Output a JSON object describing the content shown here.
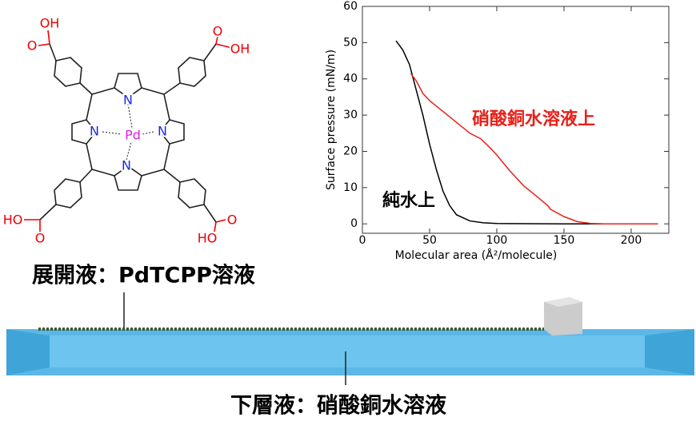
{
  "chart_data": {
    "type": "line",
    "x_label": "Molecular area (Å²/molecule)",
    "y_label": "Surface pressure (mN/m)",
    "xlim": [
      0,
      228
    ],
    "xticks": [
      0,
      50,
      100,
      150,
      200
    ],
    "ylim": [
      -2.6,
      60
    ],
    "yticks": [
      0,
      10,
      20,
      30,
      40,
      50,
      60
    ],
    "series": [
      {
        "name": "純水上",
        "color": "#000000",
        "x": [
          25,
          30,
          35,
          40,
          45,
          50,
          55,
          60,
          65,
          70,
          80,
          90,
          100,
          150,
          220
        ],
        "values": [
          50.5,
          48,
          44,
          37,
          30,
          22,
          15,
          9,
          5,
          2.5,
          0.8,
          0.3,
          0.1,
          0,
          0
        ]
      },
      {
        "name": "硝酸銅水溶液上",
        "color": "#e8201a",
        "x": [
          36,
          40,
          45,
          50,
          60,
          70,
          80,
          88,
          95,
          100,
          110,
          120,
          130,
          138,
          140,
          150,
          160,
          170,
          180,
          220
        ],
        "values": [
          41.5,
          39.5,
          36,
          34,
          31,
          28,
          25,
          23.5,
          21,
          19,
          14.5,
          10.5,
          7.5,
          5,
          4,
          2,
          0.6,
          0.1,
          0,
          0
        ]
      }
    ]
  },
  "molecule": {
    "labels": [
      "OH",
      "O",
      "OH",
      "O",
      "N",
      "N",
      "Pd",
      "N",
      "N",
      "HO",
      "O",
      "O",
      "HO"
    ]
  },
  "trough": {
    "spreading_label": "展開液：PdTCPP溶液",
    "subphase_label": "下層液：硝酸銅水溶液"
  }
}
